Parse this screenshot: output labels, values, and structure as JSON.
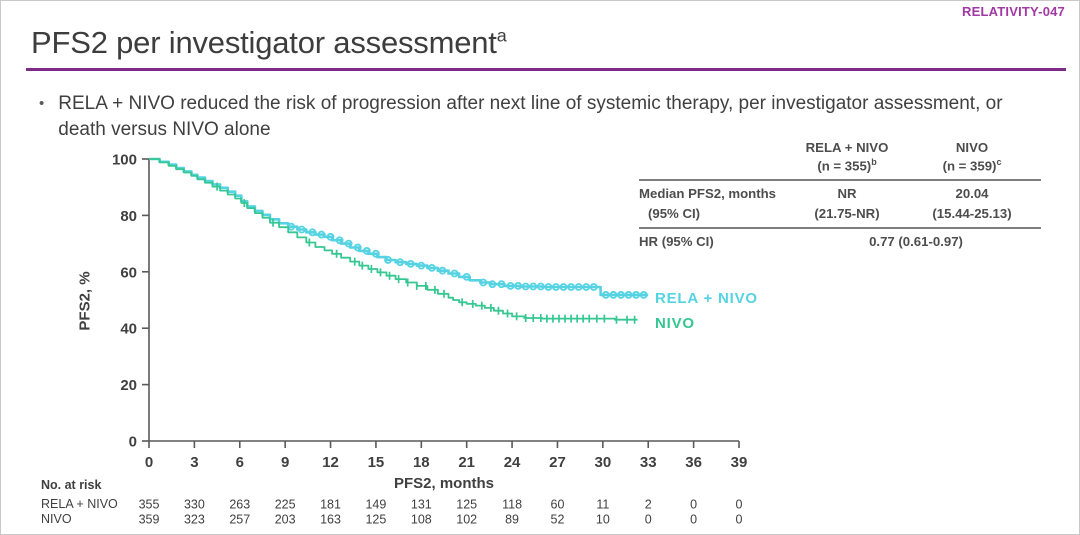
{
  "slide": {
    "program_label": "RELATIVITY-047",
    "title": "PFS2 per investigator assessment",
    "title_superscript": "a",
    "bullet": "RELA + NIVO reduced the risk of progression after next line of systemic therapy, per investigator assessment, or death versus NIVO alone"
  },
  "colors": {
    "accent_purple": "#A238A5",
    "rule_purple": "#7D2B87",
    "axis": "#595959",
    "text_dark": "#404040",
    "rela_nivo": "#55D3E3",
    "nivo": "#36C793"
  },
  "summary_table": {
    "col_headers": [
      {
        "line1": "RELA + NIVO",
        "line2": "(n = 355)",
        "sup": "b"
      },
      {
        "line1": "NIVO",
        "line2": "(n = 359)",
        "sup": "c"
      }
    ],
    "rows": [
      {
        "label": "Median PFS2, months",
        "values": [
          "NR",
          "20.04"
        ]
      },
      {
        "label": "(95% CI)",
        "values": [
          "(21.75-NR)",
          "(15.44-25.13)"
        ]
      },
      {
        "label": "HR (95% CI)",
        "span_value": "0.77 (0.61-0.97)"
      }
    ]
  },
  "chart_data": {
    "type": "line",
    "subtype": "kaplan-meier-step",
    "title": "",
    "xlabel": "PFS2, months",
    "ylabel": "PFS2, %",
    "xlim": [
      0,
      39
    ],
    "ylim": [
      0,
      100
    ],
    "x_ticks": [
      0,
      3,
      6,
      9,
      12,
      15,
      18,
      21,
      24,
      27,
      30,
      33,
      36,
      39
    ],
    "y_ticks": [
      0,
      20,
      40,
      60,
      80,
      100
    ],
    "grid": false,
    "legend_position": "end-of-curve",
    "series": [
      {
        "name": "RELA + NIVO",
        "color": "#55D3E3",
        "censor_style": "circle",
        "points": [
          [
            0,
            100
          ],
          [
            0.7,
            99
          ],
          [
            1.3,
            98
          ],
          [
            1.8,
            96.8
          ],
          [
            2.3,
            95.6
          ],
          [
            2.8,
            94.4
          ],
          [
            3.2,
            93.4
          ],
          [
            3.7,
            92.2
          ],
          [
            4.2,
            91
          ],
          [
            4.7,
            89.8
          ],
          [
            5.2,
            88.4
          ],
          [
            5.7,
            87
          ],
          [
            6.1,
            85
          ],
          [
            6.5,
            83.2
          ],
          [
            7,
            81.6
          ],
          [
            7.5,
            80.2
          ],
          [
            8,
            78.6
          ],
          [
            8.6,
            77.2
          ],
          [
            9.2,
            76
          ],
          [
            9.8,
            75
          ],
          [
            10.4,
            74
          ],
          [
            11,
            73.2
          ],
          [
            11.6,
            72.4
          ],
          [
            12.1,
            71.2
          ],
          [
            12.7,
            70
          ],
          [
            13.3,
            68.6
          ],
          [
            13.9,
            67.4
          ],
          [
            14.5,
            66.4
          ],
          [
            15.1,
            65.2
          ],
          [
            15.7,
            64.2
          ],
          [
            16.3,
            63.4
          ],
          [
            17,
            62.8
          ],
          [
            17.7,
            62.2
          ],
          [
            18.4,
            61.4
          ],
          [
            19.1,
            60.4
          ],
          [
            19.8,
            59.4
          ],
          [
            20.5,
            58.2
          ],
          [
            21.2,
            57
          ],
          [
            21.9,
            56.2
          ],
          [
            22.6,
            55.6
          ],
          [
            23.5,
            55
          ],
          [
            24.5,
            54.8
          ],
          [
            26,
            54.6
          ],
          [
            29.75,
            54.6
          ],
          [
            29.85,
            51.8
          ],
          [
            33,
            51.8
          ]
        ],
        "censors": [
          9.4,
          10.1,
          10.8,
          11.4,
          12,
          12.6,
          13.2,
          13.8,
          14.4,
          15,
          15.8,
          16.6,
          17.3,
          18,
          18.7,
          19.4,
          20.2,
          21,
          22.1,
          22.7,
          23.3,
          23.9,
          24.4,
          24.9,
          25.4,
          25.9,
          26.4,
          26.9,
          27.4,
          27.9,
          28.4,
          28.9,
          29.4,
          30.2,
          30.7,
          31.2,
          31.7,
          32.2,
          32.7
        ]
      },
      {
        "name": "NIVO",
        "color": "#36C793",
        "censor_style": "tick",
        "points": [
          [
            0,
            100
          ],
          [
            0.7,
            98.8
          ],
          [
            1.3,
            97.6
          ],
          [
            1.8,
            96.4
          ],
          [
            2.3,
            95.2
          ],
          [
            2.8,
            94
          ],
          [
            3.2,
            92.8
          ],
          [
            3.7,
            91.6
          ],
          [
            4.2,
            90.2
          ],
          [
            4.7,
            88.8
          ],
          [
            5.2,
            87.4
          ],
          [
            5.7,
            86
          ],
          [
            6.1,
            84.4
          ],
          [
            6.5,
            82.6
          ],
          [
            7,
            80.8
          ],
          [
            7.5,
            79.2
          ],
          [
            8,
            77.4
          ],
          [
            8.6,
            75.8
          ],
          [
            9.2,
            74
          ],
          [
            9.8,
            72.2
          ],
          [
            10.4,
            70.4
          ],
          [
            11,
            68.8
          ],
          [
            11.6,
            67.6
          ],
          [
            12.1,
            66.4
          ],
          [
            12.7,
            65
          ],
          [
            13.3,
            63.6
          ],
          [
            13.9,
            62.2
          ],
          [
            14.5,
            61
          ],
          [
            15.1,
            59.8
          ],
          [
            15.7,
            58.6
          ],
          [
            16.3,
            57.4
          ],
          [
            17,
            56.2
          ],
          [
            17.7,
            55
          ],
          [
            18.4,
            53.6
          ],
          [
            19.1,
            52.2
          ],
          [
            19.8,
            50.8
          ],
          [
            20.1,
            50
          ],
          [
            20.5,
            49.2
          ],
          [
            21,
            48.6
          ],
          [
            21.6,
            48
          ],
          [
            22.2,
            47.2
          ],
          [
            22.8,
            46.2
          ],
          [
            23.4,
            45.2
          ],
          [
            24,
            44.2
          ],
          [
            24.8,
            43.6
          ],
          [
            26,
            43.4
          ],
          [
            30.6,
            43.4
          ],
          [
            30.8,
            43
          ],
          [
            32.3,
            43
          ]
        ],
        "censors": [
          4.5,
          6.3,
          8.2,
          10.6,
          12.4,
          13.6,
          14.1,
          14.7,
          15.3,
          15.9,
          16.5,
          17.1,
          17.7,
          18.3,
          18.9,
          19.5,
          20.7,
          21.4,
          22,
          22.6,
          23.1,
          23.7,
          24.3,
          24.9,
          25.4,
          25.9,
          26.3,
          26.7,
          27.1,
          27.5,
          27.9,
          28.3,
          28.7,
          29.1,
          29.6,
          30.1,
          30.9,
          31.6,
          32.1
        ]
      }
    ]
  },
  "risk_table": {
    "title": "No. at risk",
    "months": [
      0,
      3,
      6,
      9,
      12,
      15,
      18,
      21,
      24,
      27,
      30,
      33,
      36,
      39
    ],
    "rows": [
      {
        "label": "RELA + NIVO",
        "values": [
          355,
          330,
          263,
          225,
          181,
          149,
          131,
          125,
          118,
          60,
          11,
          2,
          0,
          0
        ]
      },
      {
        "label": "NIVO",
        "values": [
          359,
          323,
          257,
          203,
          163,
          125,
          108,
          102,
          89,
          52,
          10,
          0,
          0,
          0
        ]
      }
    ]
  }
}
